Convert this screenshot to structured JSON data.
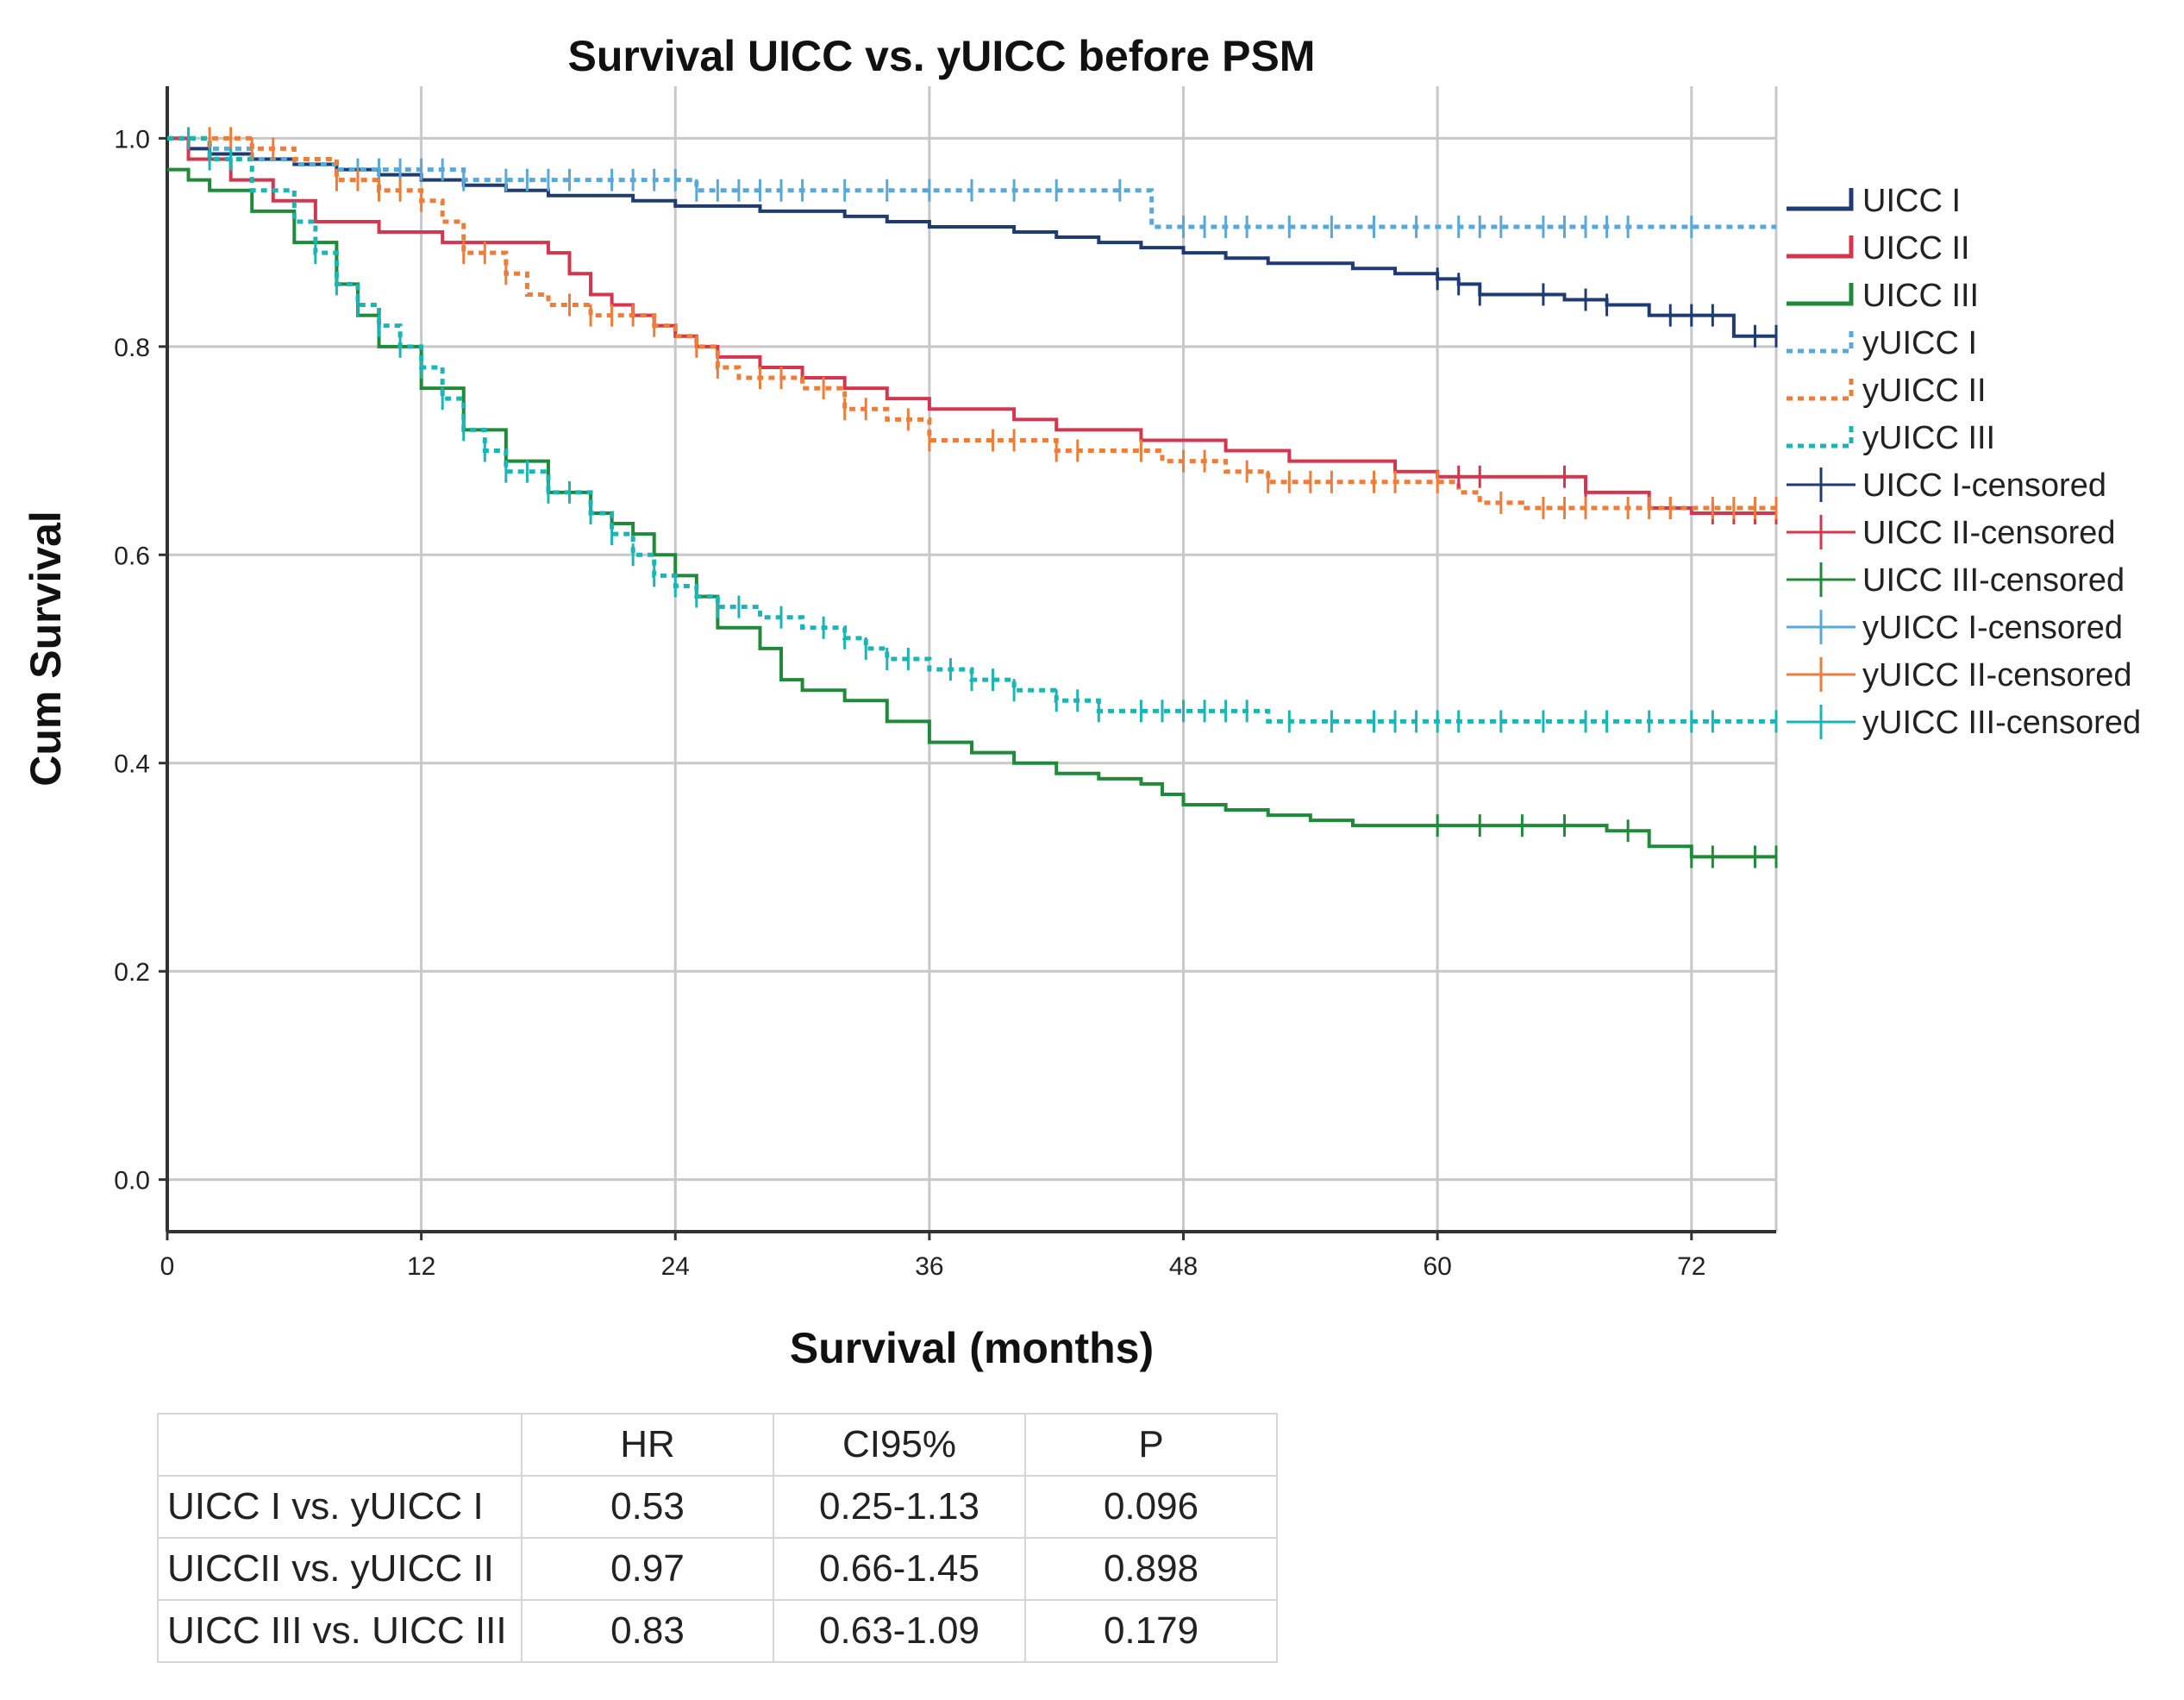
{
  "chart_data": {
    "type": "line",
    "subtype": "kaplan-meier",
    "title": "Survival UICC vs. yUICC before PSM",
    "xlabel": "Survival (months)",
    "ylabel": "Cum Survival",
    "xlim": [
      0,
      76
    ],
    "ylim": [
      -0.05,
      1.05
    ],
    "xticks": [
      0,
      12,
      24,
      36,
      48,
      60,
      72
    ],
    "yticks": [
      0.0,
      0.2,
      0.4,
      0.6,
      0.8,
      1.0
    ],
    "ytick_labels": [
      "0.0",
      "0.2",
      "0.4",
      "0.6",
      "0.8",
      "1.0"
    ],
    "grid": true,
    "legend_position": "right",
    "legend": [
      {
        "label": "UICC I",
        "kind": "line-solid",
        "color": "#1f3b73"
      },
      {
        "label": "UICC II",
        "kind": "line-solid",
        "color": "#d3364e"
      },
      {
        "label": "UICC III",
        "kind": "line-solid",
        "color": "#1f8a3a"
      },
      {
        "label": "yUICC I",
        "kind": "line-dotted",
        "color": "#5aa8d8"
      },
      {
        "label": "yUICC II",
        "kind": "line-dotted",
        "color": "#ee7d3a"
      },
      {
        "label": "yUICC III",
        "kind": "line-dotted",
        "color": "#1cb5b5"
      },
      {
        "label": "UICC I-censored",
        "kind": "censor",
        "color": "#1f3b73"
      },
      {
        "label": "UICC II-censored",
        "kind": "censor",
        "color": "#d3364e"
      },
      {
        "label": "UICC III-censored",
        "kind": "censor",
        "color": "#1f8a3a"
      },
      {
        "label": "yUICC I-censored",
        "kind": "censor",
        "color": "#5aa8d8"
      },
      {
        "label": "yUICC II-censored",
        "kind": "censor",
        "color": "#ee7d3a"
      },
      {
        "label": "yUICC III-censored",
        "kind": "censor",
        "color": "#1cb5b5"
      }
    ],
    "series": [
      {
        "name": "UICC I",
        "style": "solid",
        "color": "#1f3b73",
        "x": [
          0,
          1,
          2,
          4,
          6,
          8,
          10,
          12,
          14,
          16,
          18,
          20,
          22,
          24,
          26,
          28,
          30,
          32,
          34,
          36,
          38,
          40,
          42,
          44,
          46,
          48,
          50,
          52,
          54,
          56,
          58,
          60,
          61,
          62,
          64,
          66,
          68,
          70,
          72,
          74,
          76
        ],
        "y": [
          1.0,
          0.99,
          0.985,
          0.98,
          0.975,
          0.97,
          0.965,
          0.96,
          0.955,
          0.95,
          0.945,
          0.945,
          0.94,
          0.935,
          0.935,
          0.93,
          0.93,
          0.925,
          0.92,
          0.915,
          0.915,
          0.91,
          0.905,
          0.9,
          0.895,
          0.89,
          0.885,
          0.88,
          0.88,
          0.875,
          0.87,
          0.865,
          0.86,
          0.85,
          0.85,
          0.845,
          0.84,
          0.83,
          0.83,
          0.81,
          0.81
        ],
        "censored_x": [
          60,
          61,
          62,
          65,
          67,
          68,
          71,
          72,
          73,
          75,
          76
        ]
      },
      {
        "name": "UICC II",
        "style": "solid",
        "color": "#d3364e",
        "x": [
          0,
          1,
          3,
          5,
          7,
          10,
          13,
          16,
          18,
          19,
          20,
          21,
          22,
          23,
          24,
          25,
          26,
          28,
          30,
          32,
          34,
          36,
          38,
          40,
          42,
          44,
          46,
          48,
          50,
          53,
          56,
          58,
          60,
          62,
          66,
          67,
          70,
          72,
          76
        ],
        "y": [
          1.0,
          0.98,
          0.96,
          0.94,
          0.92,
          0.91,
          0.9,
          0.9,
          0.89,
          0.87,
          0.85,
          0.84,
          0.83,
          0.82,
          0.81,
          0.8,
          0.79,
          0.78,
          0.77,
          0.76,
          0.75,
          0.74,
          0.74,
          0.73,
          0.72,
          0.72,
          0.71,
          0.71,
          0.7,
          0.69,
          0.69,
          0.68,
          0.675,
          0.675,
          0.675,
          0.66,
          0.645,
          0.64,
          0.64
        ],
        "censored_x": [
          61,
          62,
          66,
          67,
          71,
          73,
          74,
          75,
          76
        ]
      },
      {
        "name": "UICC III",
        "style": "solid",
        "color": "#1f8a3a",
        "x": [
          0,
          1,
          2,
          4,
          6,
          8,
          9,
          10,
          12,
          14,
          16,
          18,
          20,
          21,
          22,
          23,
          24,
          25,
          26,
          28,
          29,
          30,
          32,
          34,
          36,
          38,
          40,
          42,
          44,
          46,
          47,
          48,
          50,
          52,
          54,
          56,
          58,
          60,
          62,
          66,
          68,
          70,
          72,
          76
        ],
        "y": [
          0.97,
          0.96,
          0.95,
          0.93,
          0.9,
          0.86,
          0.83,
          0.8,
          0.76,
          0.72,
          0.69,
          0.66,
          0.64,
          0.63,
          0.62,
          0.6,
          0.58,
          0.56,
          0.53,
          0.51,
          0.48,
          0.47,
          0.46,
          0.44,
          0.42,
          0.41,
          0.4,
          0.39,
          0.385,
          0.38,
          0.37,
          0.36,
          0.355,
          0.35,
          0.345,
          0.34,
          0.34,
          0.34,
          0.34,
          0.34,
          0.335,
          0.32,
          0.31,
          0.31
        ],
        "censored_x": [
          60,
          62,
          64,
          66,
          69,
          72,
          73,
          75,
          76
        ]
      },
      {
        "name": "yUICC I",
        "style": "dotted",
        "color": "#5aa8d8",
        "x": [
          0,
          2,
          4,
          6,
          8,
          14,
          24,
          25,
          46,
          46.5,
          76
        ],
        "y": [
          1.0,
          0.99,
          0.98,
          0.975,
          0.97,
          0.96,
          0.96,
          0.95,
          0.95,
          0.915,
          0.915
        ],
        "censored_x": [
          9,
          10,
          11,
          12,
          13,
          14,
          16,
          17,
          18,
          19,
          21,
          22,
          23,
          24,
          25,
          26,
          27,
          28,
          29,
          30,
          32,
          34,
          36,
          38,
          40,
          42,
          45,
          48,
          49,
          50,
          51,
          53,
          55,
          57,
          59,
          61,
          62,
          63,
          65,
          66,
          67,
          68,
          69,
          72
        ]
      },
      {
        "name": "yUICC II",
        "style": "dotted",
        "color": "#ee7d3a",
        "x": [
          0,
          4,
          6,
          8,
          10,
          12,
          13,
          14,
          16,
          17,
          18,
          19,
          20,
          22,
          23,
          24,
          25,
          26,
          27,
          28,
          30,
          32,
          34,
          36,
          38,
          42,
          46,
          47,
          50,
          52,
          56,
          60,
          61,
          62,
          64,
          68,
          72,
          76
        ],
        "y": [
          1.0,
          0.99,
          0.98,
          0.96,
          0.95,
          0.94,
          0.92,
          0.89,
          0.87,
          0.85,
          0.84,
          0.84,
          0.83,
          0.83,
          0.82,
          0.81,
          0.8,
          0.78,
          0.77,
          0.77,
          0.76,
          0.74,
          0.73,
          0.71,
          0.71,
          0.7,
          0.7,
          0.69,
          0.68,
          0.67,
          0.67,
          0.67,
          0.66,
          0.65,
          0.645,
          0.645,
          0.645,
          0.645
        ],
        "censored_x": [
          2,
          3,
          4,
          5,
          8,
          9,
          10,
          11,
          12,
          14,
          15,
          16,
          19,
          20,
          21,
          22,
          23,
          25,
          26,
          28,
          29,
          31,
          32,
          33,
          35,
          36,
          39,
          40,
          42,
          43,
          46,
          48,
          49,
          51,
          52,
          53,
          54,
          55,
          57,
          58,
          60,
          63,
          65,
          66,
          67,
          69,
          70,
          71,
          73,
          74,
          75,
          76
        ]
      },
      {
        "name": "yUICC III",
        "style": "dotted",
        "color": "#1cb5b5",
        "x": [
          0,
          2,
          4,
          6,
          7,
          8,
          9,
          10,
          11,
          12,
          13,
          14,
          15,
          16,
          18,
          20,
          21,
          22,
          23,
          24,
          25,
          26,
          28,
          30,
          32,
          33,
          34,
          36,
          38,
          40,
          42,
          44,
          48,
          52,
          54,
          58,
          60,
          64,
          68,
          72,
          76
        ],
        "y": [
          1.0,
          0.98,
          0.95,
          0.92,
          0.89,
          0.86,
          0.84,
          0.82,
          0.8,
          0.78,
          0.75,
          0.72,
          0.7,
          0.68,
          0.66,
          0.64,
          0.62,
          0.6,
          0.58,
          0.57,
          0.56,
          0.55,
          0.54,
          0.53,
          0.52,
          0.51,
          0.5,
          0.49,
          0.48,
          0.47,
          0.46,
          0.45,
          0.45,
          0.44,
          0.44,
          0.44,
          0.44,
          0.44,
          0.44,
          0.44,
          0.44
        ],
        "censored_x": [
          1,
          2,
          3,
          7,
          8,
          9,
          10,
          11,
          12,
          13,
          14,
          15,
          16,
          17,
          18,
          19,
          20,
          21,
          22,
          23,
          24,
          25,
          26,
          27,
          29,
          31,
          32,
          33,
          34,
          35,
          37,
          38,
          39,
          40,
          42,
          43,
          44,
          46,
          47,
          48,
          49,
          50,
          51,
          53,
          55,
          57,
          58,
          59,
          60,
          61,
          63,
          65,
          67,
          68,
          70,
          72,
          73,
          76
        ]
      }
    ]
  },
  "table": {
    "headers": [
      "",
      "HR",
      "CI95%",
      "P"
    ],
    "rows": [
      [
        "UICC I vs. yUICC I",
        "0.53",
        "0.25-1.13",
        "0.096"
      ],
      [
        "UICCII vs. yUICC II",
        "0.97",
        "0.66-1.45",
        "0.898"
      ],
      [
        "UICC III vs. UICC III",
        "0.83",
        "0.63-1.09",
        "0.179"
      ]
    ]
  }
}
